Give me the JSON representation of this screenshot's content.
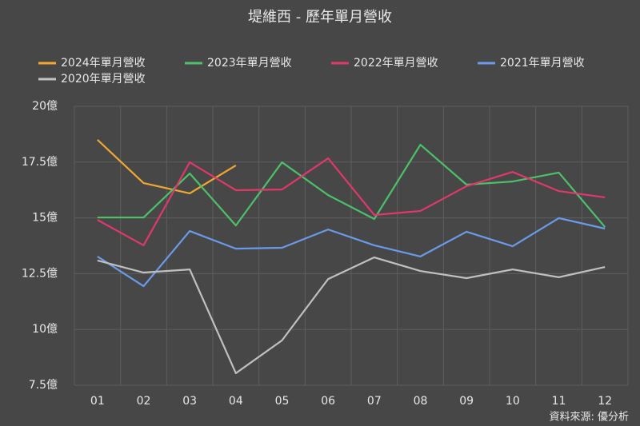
{
  "chart_data": {
    "type": "line",
    "title": "堤維西 - 歷年單月營收",
    "source": "資料來源: 優分析",
    "categories": [
      "01",
      "02",
      "03",
      "04",
      "05",
      "06",
      "07",
      "08",
      "09",
      "10",
      "11",
      "12"
    ],
    "series": [
      {
        "name": "2024年單月營收",
        "color": "#f0a830",
        "values": [
          18.5,
          16.56,
          16.1,
          17.35,
          null,
          null,
          null,
          null,
          null,
          null,
          null,
          null
        ]
      },
      {
        "name": "2023年單月營收",
        "color": "#4cc06a",
        "values": [
          15.02,
          15.02,
          16.99,
          14.66,
          17.49,
          16.02,
          14.95,
          18.28,
          16.49,
          16.63,
          17.03,
          14.59
        ]
      },
      {
        "name": "2022年單月營收",
        "color": "#e0386a",
        "values": [
          14.91,
          13.77,
          17.49,
          16.24,
          16.27,
          17.67,
          15.13,
          15.31,
          16.42,
          17.06,
          16.2,
          15.92
        ]
      },
      {
        "name": "2021年單月營收",
        "color": "#6b9ae8",
        "values": [
          13.27,
          11.94,
          14.41,
          13.62,
          13.66,
          14.48,
          13.77,
          13.27,
          14.38,
          13.73,
          14.99,
          14.52
        ]
      },
      {
        "name": "2020年單月營收",
        "color": "#c0c0c0",
        "values": [
          13.09,
          12.55,
          12.69,
          8.04,
          9.51,
          12.26,
          13.23,
          12.62,
          12.3,
          12.69,
          12.34,
          12.8
        ]
      }
    ],
    "ylim": [
      7.5,
      20
    ],
    "yticks": [
      {
        "value": 7.5,
        "label": "7.5億"
      },
      {
        "value": 10,
        "label": "10億"
      },
      {
        "value": 12.5,
        "label": "12.5億"
      },
      {
        "value": 15,
        "label": "15億"
      },
      {
        "value": 17.5,
        "label": "17.5億"
      },
      {
        "value": 20,
        "label": "20億"
      }
    ],
    "grid": true
  }
}
